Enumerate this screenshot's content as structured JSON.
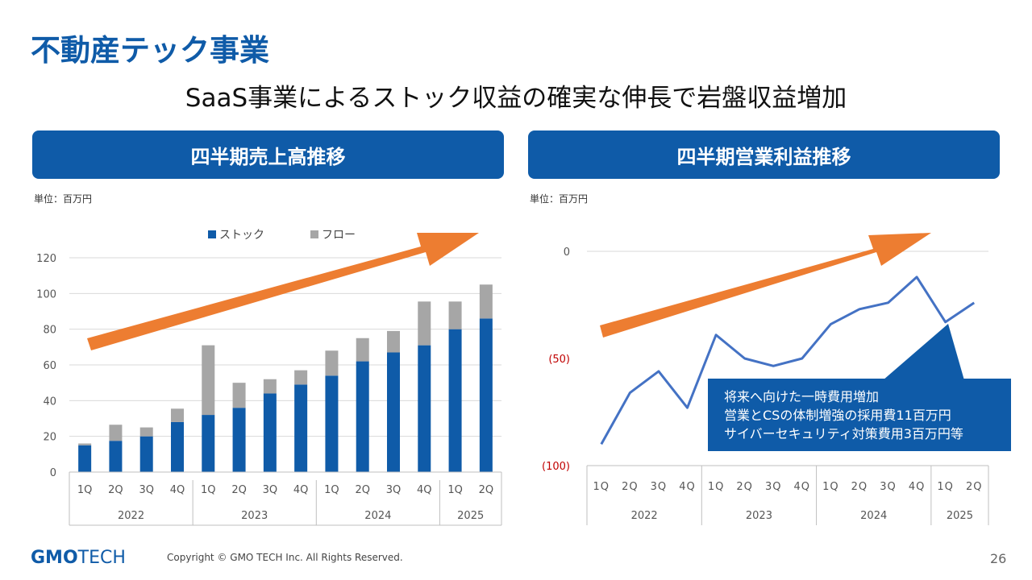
{
  "title": "不動産テック事業",
  "subtitle": "SaaS事業によるストック収益の確実な伸長で岩盤収益増加",
  "left_panel": {
    "header": "四半期売上高推移",
    "unit": "単位：百万円"
  },
  "right_panel": {
    "header": "四半期営業利益推移",
    "unit": "単位：百万円"
  },
  "callout": {
    "lines": [
      "将来へ向けた一時費用増加",
      "営業とCSの体制増強の採用費11百万円",
      "サイバーセキュリティ対策費用3百万円等"
    ]
  },
  "footer": {
    "logo_main": "GMO",
    "logo_sub": "TECH",
    "copyright": "Copyright © GMO TECH Inc. All Rights Reserved.",
    "page": "26"
  },
  "colors": {
    "brand": "#0f5ba8",
    "stock": "#0f5ba8",
    "flow": "#a6a6a6",
    "line": "#4472c4",
    "arrow": "#ed7d31",
    "negative_tick": "#c00000"
  },
  "chart_data": [
    {
      "type": "bar",
      "stacked": true,
      "quarters": [
        "1Q",
        "2Q",
        "3Q",
        "4Q",
        "1Q",
        "2Q",
        "3Q",
        "4Q",
        "1Q",
        "2Q",
        "3Q",
        "4Q",
        "1Q",
        "2Q"
      ],
      "years": [
        {
          "label": "2022",
          "count": 4
        },
        {
          "label": "2023",
          "count": 4
        },
        {
          "label": "2024",
          "count": 4
        },
        {
          "label": "2025",
          "count": 2
        }
      ],
      "series": [
        {
          "name": "ストック",
          "color": "#0f5ba8",
          "values": [
            15,
            17.5,
            20,
            28,
            32,
            36,
            44,
            49,
            54,
            62,
            67,
            71,
            80,
            86
          ]
        },
        {
          "name": "フロー",
          "color": "#a6a6a6",
          "values": [
            1,
            9,
            5,
            7.5,
            39,
            14,
            8,
            8,
            14,
            13,
            12,
            24.5,
            15.5,
            19
          ]
        }
      ],
      "yticks": [
        "0",
        "20",
        "40",
        "60",
        "80",
        "100",
        "120"
      ],
      "ylim": [
        0,
        120
      ],
      "grid": true,
      "legend": "top"
    },
    {
      "type": "line",
      "quarters": [
        "1Q",
        "2Q",
        "3Q",
        "4Q",
        "1Q",
        "2Q",
        "3Q",
        "4Q",
        "1Q",
        "2Q",
        "3Q",
        "4Q",
        "1Q",
        "2Q"
      ],
      "years": [
        {
          "label": "2022",
          "count": 4
        },
        {
          "label": "2023",
          "count": 4
        },
        {
          "label": "2024",
          "count": 4
        },
        {
          "label": "2025",
          "count": 2
        }
      ],
      "values": [
        -90,
        -66,
        -56,
        -73,
        -39,
        -50,
        -53.5,
        -50,
        -34,
        -27,
        -24,
        -12,
        -33,
        -24
      ],
      "yticks": [
        "0",
        "(50)",
        "(100)"
      ],
      "ylim": [
        -100,
        0
      ]
    }
  ]
}
